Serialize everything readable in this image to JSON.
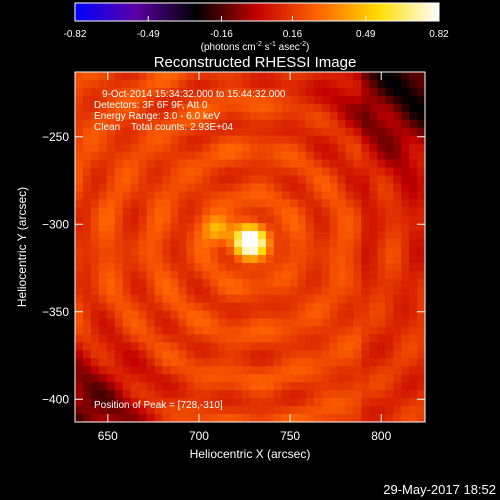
{
  "colorbar": {
    "tick_labels": [
      "-0.82",
      "-0.49",
      "-0.16",
      "0.16",
      "0.49",
      "0.82"
    ],
    "tick_values": [
      -0.82,
      -0.49,
      -0.16,
      0.16,
      0.49,
      0.82
    ],
    "range": [
      -0.82,
      0.82
    ],
    "units_main": "(photons cm",
    "units_exp1": "-2",
    "units_mid": " s",
    "units_exp2": "-1",
    "units_tail": " asec",
    "units_exp3": "-2",
    "units_close": ")",
    "colors": [
      "#0000ff",
      "#5b00a6",
      "#000000",
      "#c30000",
      "#ff6400",
      "#ffdc00",
      "#ffffff"
    ]
  },
  "chart_data": {
    "type": "heatmap",
    "title": "Reconstructed RHESSI Image",
    "xlabel": "Heliocentric X (arcsec)",
    "ylabel": "Heliocentric Y (arcsec)",
    "xlim": [
      632,
      824
    ],
    "ylim": [
      -413,
      -213
    ],
    "x_ticks": [
      650,
      700,
      750,
      800
    ],
    "x_tick_labels": [
      "650",
      "700",
      "750",
      "800"
    ],
    "y_ticks": [
      -250,
      -300,
      -350,
      -400
    ],
    "y_tick_labels": [
      "−250",
      "−300",
      "−350",
      "−400"
    ],
    "annotations": [
      "9-Oct-2014 15:34:32.000 to 15:44:32.000",
      "Detectors: 3F 6F 9F, Att 0",
      "Energy Range: 3.0 - 6.0 keV",
      "Clean    Total counts: 2.93E+04",
      "Position of Peak = [728,-310]"
    ],
    "peak": {
      "x": 728,
      "y": -310,
      "value": 0.82
    },
    "secondary_source": {
      "x": 710,
      "y": -303,
      "value": 0.5
    }
  },
  "timestamp": "29-May-2017 18:52"
}
